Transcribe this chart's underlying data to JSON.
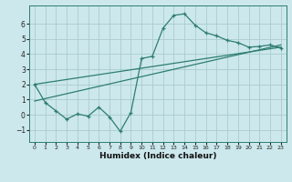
{
  "xlabel": "Humidex (Indice chaleur)",
  "ylabel": "",
  "bg_color": "#cce8ec",
  "grid_color": "#aacccc",
  "line_color": "#2e7d72",
  "xlim": [
    -0.5,
    23.5
  ],
  "ylim": [
    -1.8,
    7.2
  ],
  "xticks": [
    0,
    1,
    2,
    3,
    4,
    5,
    6,
    7,
    8,
    9,
    10,
    11,
    12,
    13,
    14,
    15,
    16,
    17,
    18,
    19,
    20,
    21,
    22,
    23
  ],
  "yticks": [
    -1,
    0,
    1,
    2,
    3,
    4,
    5,
    6
  ],
  "main_x": [
    0,
    1,
    2,
    3,
    4,
    5,
    6,
    7,
    8,
    9,
    10,
    11,
    12,
    13,
    14,
    15,
    16,
    17,
    18,
    19,
    20,
    21,
    22,
    23
  ],
  "main_y": [
    2.0,
    0.8,
    0.25,
    -0.3,
    0.05,
    -0.1,
    0.5,
    -0.15,
    -1.1,
    0.15,
    3.7,
    3.85,
    5.7,
    6.55,
    6.65,
    5.9,
    5.4,
    5.2,
    4.9,
    4.75,
    4.45,
    4.5,
    4.6,
    4.4
  ],
  "line1_x": [
    0,
    23
  ],
  "line1_y": [
    2.0,
    4.45
  ],
  "line2_x": [
    0,
    23
  ],
  "line2_y": [
    0.9,
    4.6
  ]
}
